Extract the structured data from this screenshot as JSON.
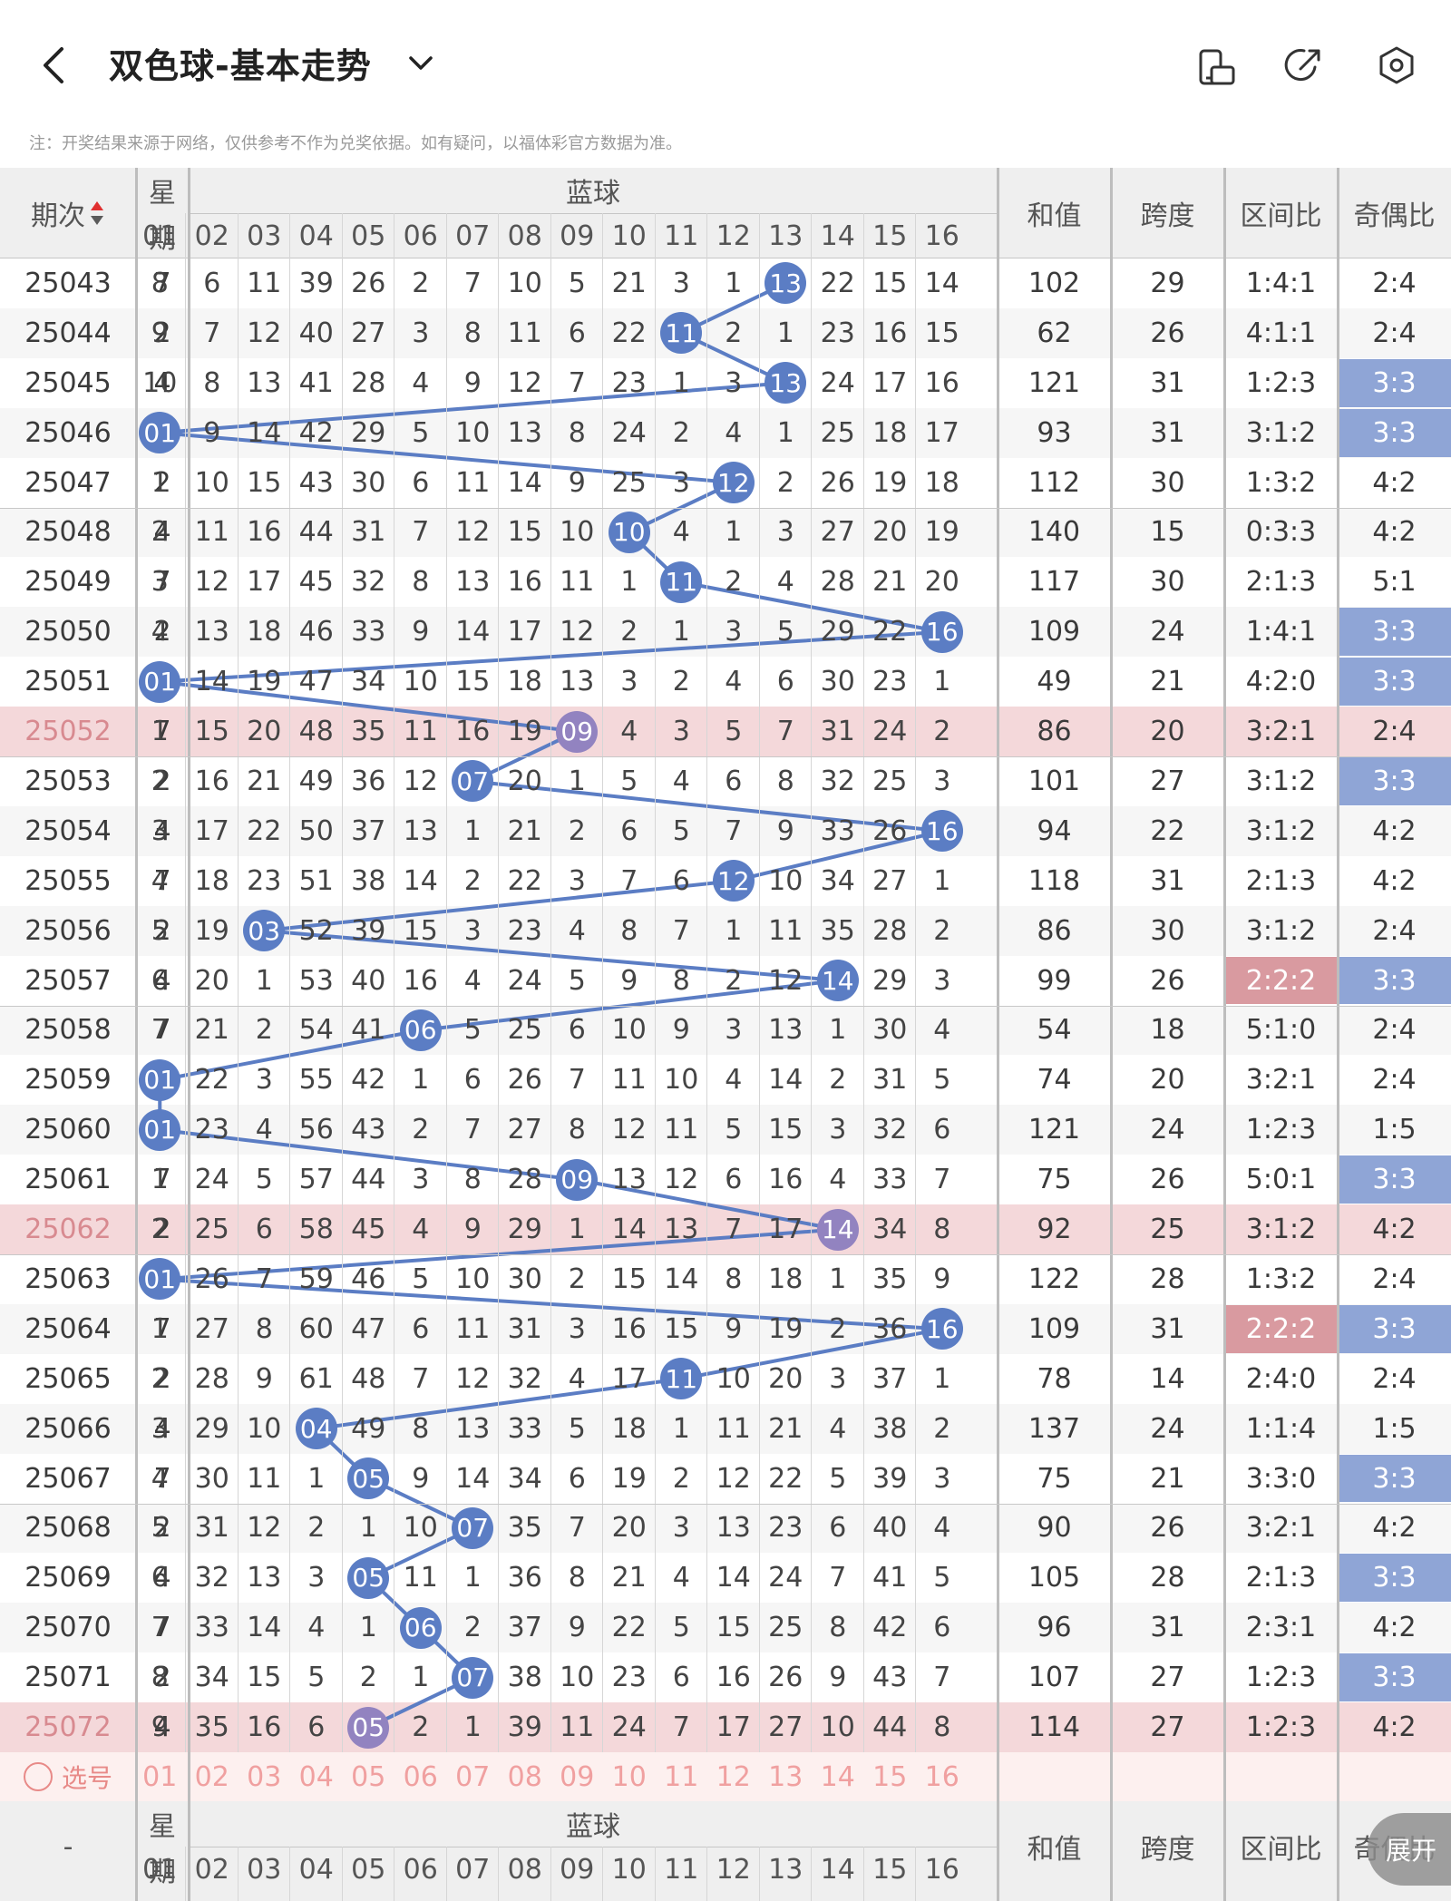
{
  "header": {
    "back_icon": "chevron-left-icon",
    "title": "双色球-基本走势",
    "dropdown_icon": "chevron-down-icon",
    "action_icons": [
      "screen-rotate-icon",
      "share-icon",
      "settings-icon"
    ]
  },
  "note": "注：开奖结果来源于网络，仅供参考不作为兑奖依据。如有疑问，以福体彩官方数据为准。",
  "table": {
    "period_header": "期次",
    "week_header": "星期",
    "week_header_top": "星",
    "week_header_bottom": "期",
    "blue_header": "蓝球",
    "stat_headers": [
      "和值",
      "跨度",
      "区间比",
      "奇偶比"
    ],
    "blue_columns": [
      "01",
      "02",
      "03",
      "04",
      "05",
      "06",
      "07",
      "08",
      "09",
      "10",
      "11",
      "12",
      "13",
      "14",
      "15",
      "16"
    ],
    "rows": [
      {
        "period": "25043",
        "week": "7",
        "blue": 13,
        "cells": [
          "8",
          "6",
          "11",
          "39",
          "26",
          "2",
          "7",
          "10",
          "5",
          "21",
          "3",
          "1",
          "13",
          "22",
          "15",
          "14"
        ],
        "sum": "102",
        "span": "29",
        "zone": "1:4:1",
        "oe": "2:4"
      },
      {
        "period": "25044",
        "week": "2",
        "blue": 11,
        "cells": [
          "9",
          "7",
          "12",
          "40",
          "27",
          "3",
          "8",
          "11",
          "6",
          "22",
          "11",
          "2",
          "1",
          "23",
          "16",
          "15"
        ],
        "sum": "62",
        "span": "26",
        "zone": "4:1:1",
        "oe": "2:4"
      },
      {
        "period": "25045",
        "week": "4",
        "blue": 13,
        "cells": [
          "10",
          "8",
          "13",
          "41",
          "28",
          "4",
          "9",
          "12",
          "7",
          "23",
          "1",
          "3",
          "13",
          "24",
          "17",
          "16"
        ],
        "sum": "121",
        "span": "31",
        "zone": "1:2:3",
        "oe": "3:3"
      },
      {
        "period": "25046",
        "week": "7",
        "blue": 1,
        "cells": [
          "01",
          "9",
          "14",
          "42",
          "29",
          "5",
          "10",
          "13",
          "8",
          "24",
          "2",
          "4",
          "1",
          "25",
          "18",
          "17"
        ],
        "sum": "93",
        "span": "31",
        "zone": "3:1:2",
        "oe": "3:3"
      },
      {
        "period": "25047",
        "week": "2",
        "blue": 12,
        "cells": [
          "1",
          "10",
          "15",
          "43",
          "30",
          "6",
          "11",
          "14",
          "9",
          "25",
          "3",
          "12",
          "2",
          "26",
          "19",
          "18"
        ],
        "sum": "112",
        "span": "30",
        "zone": "1:3:2",
        "oe": "4:2"
      },
      {
        "period": "25048",
        "week": "4",
        "blue": 10,
        "cells": [
          "2",
          "11",
          "16",
          "44",
          "31",
          "7",
          "12",
          "15",
          "10",
          "10",
          "4",
          "1",
          "3",
          "27",
          "20",
          "19"
        ],
        "sum": "140",
        "span": "15",
        "zone": "0:3:3",
        "oe": "4:2"
      },
      {
        "period": "25049",
        "week": "7",
        "blue": 11,
        "cells": [
          "3",
          "12",
          "17",
          "45",
          "32",
          "8",
          "13",
          "16",
          "11",
          "1",
          "11",
          "2",
          "4",
          "28",
          "21",
          "20"
        ],
        "sum": "117",
        "span": "30",
        "zone": "2:1:3",
        "oe": "5:1"
      },
      {
        "period": "25050",
        "week": "2",
        "blue": 16,
        "cells": [
          "4",
          "13",
          "18",
          "46",
          "33",
          "9",
          "14",
          "17",
          "12",
          "2",
          "1",
          "3",
          "5",
          "29",
          "22",
          "16"
        ],
        "sum": "109",
        "span": "24",
        "zone": "1:4:1",
        "oe": "3:3"
      },
      {
        "period": "25051",
        "week": "4",
        "blue": 1,
        "cells": [
          "01",
          "14",
          "19",
          "47",
          "34",
          "10",
          "15",
          "18",
          "13",
          "3",
          "2",
          "4",
          "6",
          "30",
          "23",
          "1"
        ],
        "sum": "49",
        "span": "21",
        "zone": "4:2:0",
        "oe": "3:3"
      },
      {
        "period": "25052",
        "week": "7",
        "blue": 9,
        "cells": [
          "1",
          "15",
          "20",
          "48",
          "35",
          "11",
          "16",
          "19",
          "09",
          "4",
          "3",
          "5",
          "7",
          "31",
          "24",
          "2"
        ],
        "sum": "86",
        "span": "20",
        "zone": "3:2:1",
        "oe": "2:4"
      },
      {
        "period": "25053",
        "week": "2",
        "blue": 7,
        "cells": [
          "2",
          "16",
          "21",
          "49",
          "36",
          "12",
          "07",
          "20",
          "1",
          "5",
          "4",
          "6",
          "8",
          "32",
          "25",
          "3"
        ],
        "sum": "101",
        "span": "27",
        "zone": "3:1:2",
        "oe": "3:3"
      },
      {
        "period": "25054",
        "week": "4",
        "blue": 16,
        "cells": [
          "3",
          "17",
          "22",
          "50",
          "37",
          "13",
          "1",
          "21",
          "2",
          "6",
          "5",
          "7",
          "9",
          "33",
          "26",
          "16"
        ],
        "sum": "94",
        "span": "22",
        "zone": "3:1:2",
        "oe": "4:2"
      },
      {
        "period": "25055",
        "week": "7",
        "blue": 12,
        "cells": [
          "4",
          "18",
          "23",
          "51",
          "38",
          "14",
          "2",
          "22",
          "3",
          "7",
          "6",
          "12",
          "10",
          "34",
          "27",
          "1"
        ],
        "sum": "118",
        "span": "31",
        "zone": "2:1:3",
        "oe": "4:2"
      },
      {
        "period": "25056",
        "week": "2",
        "blue": 3,
        "cells": [
          "5",
          "19",
          "03",
          "52",
          "39",
          "15",
          "3",
          "23",
          "4",
          "8",
          "7",
          "1",
          "11",
          "35",
          "28",
          "2"
        ],
        "sum": "86",
        "span": "30",
        "zone": "3:1:2",
        "oe": "2:4"
      },
      {
        "period": "25057",
        "week": "4",
        "blue": 14,
        "cells": [
          "6",
          "20",
          "1",
          "53",
          "40",
          "16",
          "4",
          "24",
          "5",
          "9",
          "8",
          "2",
          "12",
          "14",
          "29",
          "3"
        ],
        "sum": "99",
        "span": "26",
        "zone": "2:2:2",
        "oe": "3:3"
      },
      {
        "period": "25058",
        "week": "7",
        "blue": 6,
        "cells": [
          "7",
          "21",
          "2",
          "54",
          "41",
          "06",
          "5",
          "25",
          "6",
          "10",
          "9",
          "3",
          "13",
          "1",
          "30",
          "4"
        ],
        "sum": "54",
        "span": "18",
        "zone": "5:1:0",
        "oe": "2:4"
      },
      {
        "period": "25059",
        "week": "2",
        "blue": 1,
        "cells": [
          "01",
          "22",
          "3",
          "55",
          "42",
          "1",
          "6",
          "26",
          "7",
          "11",
          "10",
          "4",
          "14",
          "2",
          "31",
          "5"
        ],
        "sum": "74",
        "span": "20",
        "zone": "3:2:1",
        "oe": "2:4"
      },
      {
        "period": "25060",
        "week": "4",
        "blue": 1,
        "cells": [
          "01",
          "23",
          "4",
          "56",
          "43",
          "2",
          "7",
          "27",
          "8",
          "12",
          "11",
          "5",
          "15",
          "3",
          "32",
          "6"
        ],
        "sum": "121",
        "span": "24",
        "zone": "1:2:3",
        "oe": "1:5"
      },
      {
        "period": "25061",
        "week": "7",
        "blue": 9,
        "cells": [
          "1",
          "24",
          "5",
          "57",
          "44",
          "3",
          "8",
          "28",
          "09",
          "13",
          "12",
          "6",
          "16",
          "4",
          "33",
          "7"
        ],
        "sum": "75",
        "span": "26",
        "zone": "5:0:1",
        "oe": "3:3"
      },
      {
        "period": "25062",
        "week": "2",
        "blue": 14,
        "cells": [
          "2",
          "25",
          "6",
          "58",
          "45",
          "4",
          "9",
          "29",
          "1",
          "14",
          "13",
          "7",
          "17",
          "14",
          "34",
          "8"
        ],
        "sum": "92",
        "span": "25",
        "zone": "3:1:2",
        "oe": "4:2"
      },
      {
        "period": "25063",
        "week": "4",
        "blue": 1,
        "cells": [
          "01",
          "26",
          "7",
          "59",
          "46",
          "5",
          "10",
          "30",
          "2",
          "15",
          "14",
          "8",
          "18",
          "1",
          "35",
          "9"
        ],
        "sum": "122",
        "span": "28",
        "zone": "1:3:2",
        "oe": "2:4"
      },
      {
        "period": "25064",
        "week": "7",
        "blue": 16,
        "cells": [
          "1",
          "27",
          "8",
          "60",
          "47",
          "6",
          "11",
          "31",
          "3",
          "16",
          "15",
          "9",
          "19",
          "2",
          "36",
          "16"
        ],
        "sum": "109",
        "span": "31",
        "zone": "2:2:2",
        "oe": "3:3"
      },
      {
        "period": "25065",
        "week": "2",
        "blue": 11,
        "cells": [
          "2",
          "28",
          "9",
          "61",
          "48",
          "7",
          "12",
          "32",
          "4",
          "17",
          "11",
          "10",
          "20",
          "3",
          "37",
          "1"
        ],
        "sum": "78",
        "span": "14",
        "zone": "2:4:0",
        "oe": "2:4"
      },
      {
        "period": "25066",
        "week": "4",
        "blue": 4,
        "cells": [
          "3",
          "29",
          "10",
          "04",
          "49",
          "8",
          "13",
          "33",
          "5",
          "18",
          "1",
          "11",
          "21",
          "4",
          "38",
          "2"
        ],
        "sum": "137",
        "span": "24",
        "zone": "1:1:4",
        "oe": "1:5"
      },
      {
        "period": "25067",
        "week": "7",
        "blue": 5,
        "cells": [
          "4",
          "30",
          "11",
          "1",
          "05",
          "9",
          "14",
          "34",
          "6",
          "19",
          "2",
          "12",
          "22",
          "5",
          "39",
          "3"
        ],
        "sum": "75",
        "span": "21",
        "zone": "3:3:0",
        "oe": "3:3"
      },
      {
        "period": "25068",
        "week": "2",
        "blue": 7,
        "cells": [
          "5",
          "31",
          "12",
          "2",
          "1",
          "10",
          "07",
          "35",
          "7",
          "20",
          "3",
          "13",
          "23",
          "6",
          "40",
          "4"
        ],
        "sum": "90",
        "span": "26",
        "zone": "3:2:1",
        "oe": "4:2"
      },
      {
        "period": "25069",
        "week": "4",
        "blue": 5,
        "cells": [
          "6",
          "32",
          "13",
          "3",
          "05",
          "11",
          "1",
          "36",
          "8",
          "21",
          "4",
          "14",
          "24",
          "7",
          "41",
          "5"
        ],
        "sum": "105",
        "span": "28",
        "zone": "2:1:3",
        "oe": "3:3"
      },
      {
        "period": "25070",
        "week": "7",
        "blue": 6,
        "cells": [
          "7",
          "33",
          "14",
          "4",
          "1",
          "06",
          "2",
          "37",
          "9",
          "22",
          "5",
          "15",
          "25",
          "8",
          "42",
          "6"
        ],
        "sum": "96",
        "span": "31",
        "zone": "2:3:1",
        "oe": "4:2"
      },
      {
        "period": "25071",
        "week": "2",
        "blue": 7,
        "cells": [
          "8",
          "34",
          "15",
          "5",
          "2",
          "1",
          "07",
          "38",
          "10",
          "23",
          "6",
          "16",
          "26",
          "9",
          "43",
          "7"
        ],
        "sum": "107",
        "span": "27",
        "zone": "1:2:3",
        "oe": "3:3"
      },
      {
        "period": "25072",
        "week": "4",
        "blue": 5,
        "cells": [
          "9",
          "35",
          "16",
          "6",
          "05",
          "2",
          "1",
          "39",
          "11",
          "24",
          "7",
          "17",
          "27",
          "10",
          "44",
          "8"
        ],
        "sum": "114",
        "span": "27",
        "zone": "1:2:3",
        "oe": "4:2"
      }
    ],
    "select_label": "选号",
    "select_numbers": [
      "01",
      "02",
      "03",
      "04",
      "05",
      "06",
      "07",
      "08",
      "09",
      "10",
      "11",
      "12",
      "13",
      "14",
      "15",
      "16"
    ],
    "footer_period": "-",
    "expand_label": "展开"
  },
  "colors": {
    "blue_ball": "#5B7DC4",
    "purple_ball": "#9283C0",
    "odd_even_highlight": "#8FA5D6",
    "zone_highlight": "#D99AA0",
    "pink_row": "#F4D8DA",
    "grid_line": "#C6C6C6",
    "header_bg": "#EFEFEF"
  }
}
